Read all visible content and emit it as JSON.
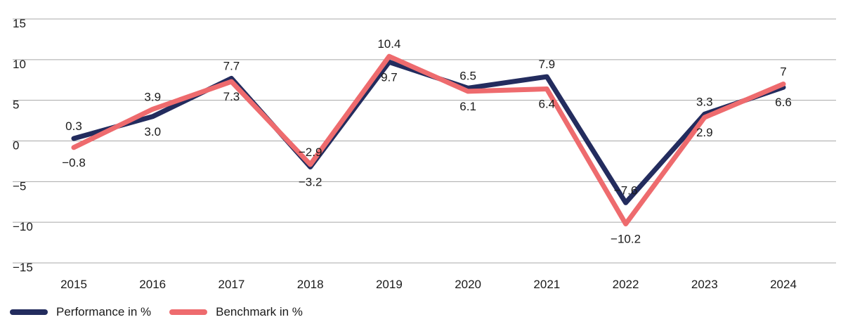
{
  "chart_data": {
    "type": "line",
    "categories": [
      "2015",
      "2016",
      "2017",
      "2018",
      "2019",
      "2020",
      "2021",
      "2022",
      "2023",
      "2024"
    ],
    "series": [
      {
        "name": "Performance in %",
        "color": "#232c5e",
        "values": [
          0.3,
          3.0,
          7.7,
          -3.2,
          9.7,
          6.5,
          7.9,
          -7.6,
          3.3,
          6.6
        ],
        "labels": [
          "0.3",
          "3.0",
          "7.7",
          "−3.2",
          "9.7",
          "6.5",
          "7.9",
          "−7.6",
          "3.3",
          "6.6"
        ]
      },
      {
        "name": "Benchmark in %",
        "color": "#ee6b6e",
        "values": [
          -0.8,
          3.9,
          7.3,
          -2.9,
          10.4,
          6.1,
          6.4,
          -10.2,
          2.9,
          7.0
        ],
        "labels": [
          "−0.8",
          "3.9",
          "7.3",
          "−2.9",
          "10.4",
          "6.1",
          "6.4",
          "−10.2",
          "2.9",
          "7"
        ]
      }
    ],
    "yticks": [
      15,
      10,
      5,
      0,
      -5,
      -10,
      -15
    ],
    "ytick_labels": [
      "15",
      "10",
      "5",
      "0",
      "−5",
      "−10",
      "−15"
    ],
    "ylim": [
      -15,
      15
    ],
    "grid": "horizontal",
    "legend_position": "bottom-left",
    "title": "",
    "xlabel": "",
    "ylabel": ""
  }
}
